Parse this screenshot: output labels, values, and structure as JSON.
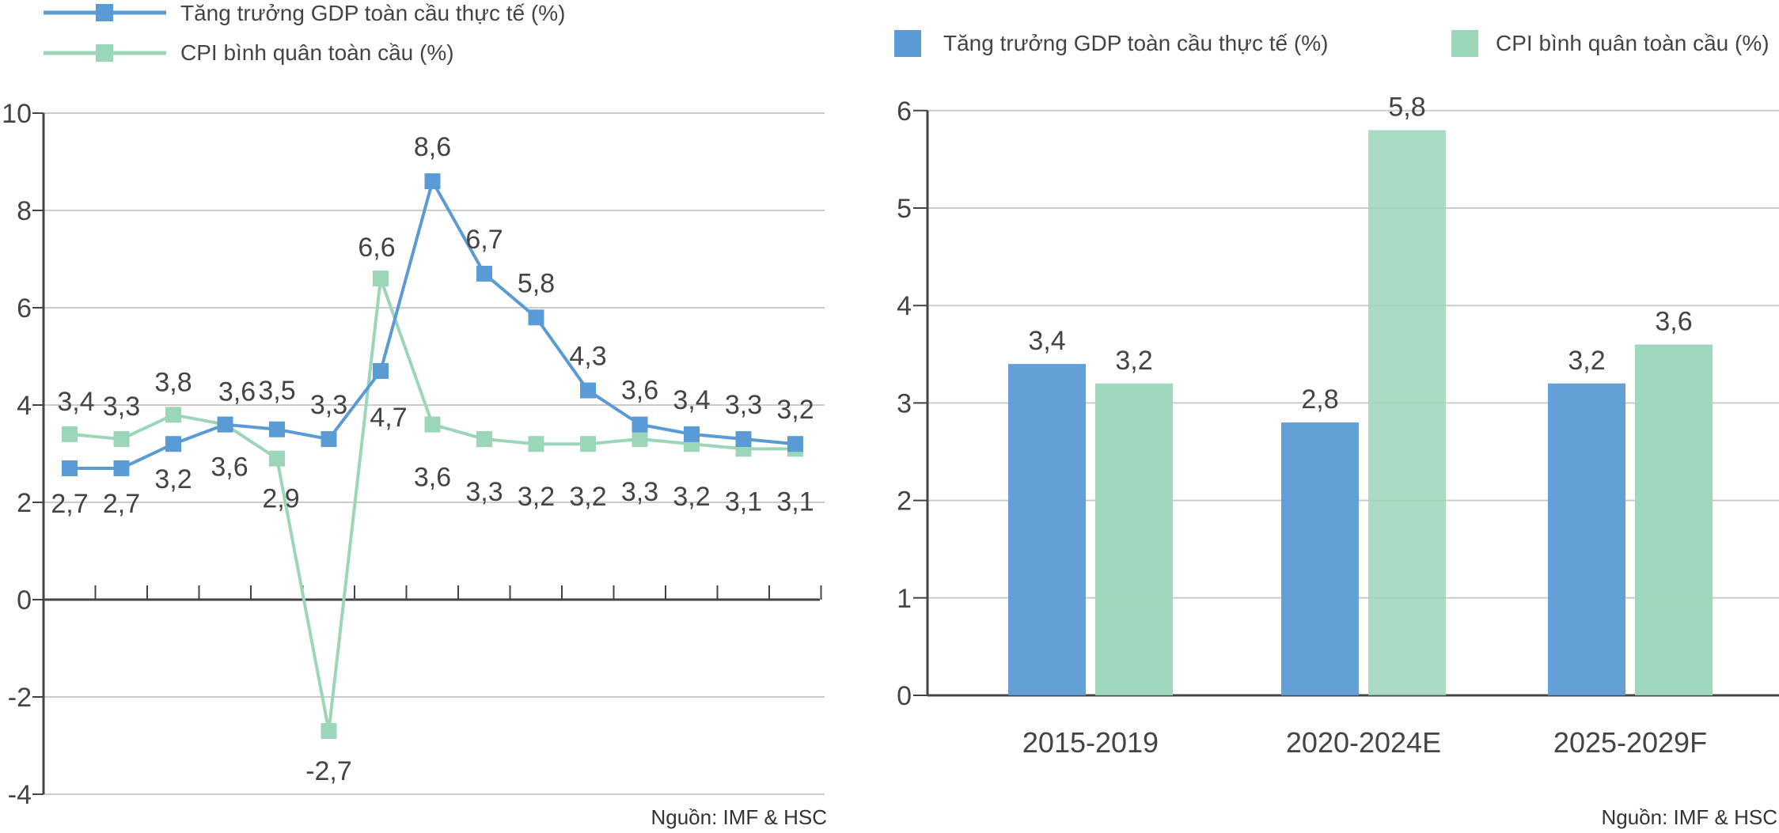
{
  "colors": {
    "blue": "#5b9bd5",
    "green": "#9bd6b9",
    "grid": "#cccccc",
    "axis": "#444444",
    "text": "#444444"
  },
  "chart_data": [
    {
      "type": "line",
      "categories": [
        "",
        "",
        "",
        "",
        "",
        "",
        "",
        "",
        "",
        "",
        "",
        "",
        "",
        "",
        ""
      ],
      "ylim": [
        -4,
        10
      ],
      "yticks": [
        "10",
        "8",
        "6",
        "4",
        "2",
        "0",
        "-2",
        "-4"
      ],
      "grid": true,
      "legend_position": "top-left",
      "source": "Nguồn: IMF & HSC",
      "series": [
        {
          "name": "Tăng trưởng GDP toàn cầu thực tế (%)",
          "values": [
            2.7,
            2.7,
            3.2,
            3.6,
            3.5,
            3.3,
            4.7,
            8.6,
            6.7,
            5.8,
            4.3,
            3.6,
            3.4,
            3.3,
            3.2
          ],
          "labels": [
            "2,7",
            "2,7",
            "3,2",
            "3,6",
            "3,5",
            "3,3",
            "4,7",
            "8,6",
            "6,7",
            "5,8",
            "4,3",
            "3,6",
            "3,4",
            "3,3",
            "3,2"
          ]
        },
        {
          "name": "CPI bình quân toàn cầu (%)",
          "values": [
            3.4,
            3.3,
            3.8,
            3.6,
            2.9,
            -2.7,
            6.6,
            3.6,
            3.3,
            3.2,
            3.2,
            3.3,
            3.2,
            3.1,
            3.1
          ],
          "labels": [
            "3,4",
            "3,3",
            "3,8",
            "3,6",
            "2,9",
            "-2,7",
            "6,6",
            "3,6",
            "3,3",
            "3,2",
            "3,2",
            "3,3",
            "3,2",
            "3,1",
            "3,1"
          ]
        }
      ]
    },
    {
      "type": "bar",
      "categories": [
        "2015-2019",
        "2020-2024E",
        "2025-2029F"
      ],
      "ylim": [
        0,
        6
      ],
      "yticks": [
        "6",
        "5",
        "4",
        "3",
        "2",
        "1",
        "0"
      ],
      "grid": true,
      "legend_position": "top",
      "source": "Nguồn: IMF & HSC",
      "series": [
        {
          "name": "Tăng trưởng GDP toàn cầu thực tế (%)",
          "values": [
            3.4,
            2.8,
            3.2
          ],
          "labels": [
            "3,4",
            "2,8",
            "3,2"
          ]
        },
        {
          "name": "CPI bình quân toàn cầu (%)",
          "values": [
            3.2,
            5.8,
            3.6
          ],
          "labels": [
            "3,2",
            "5,8",
            "3,6"
          ]
        }
      ]
    }
  ]
}
